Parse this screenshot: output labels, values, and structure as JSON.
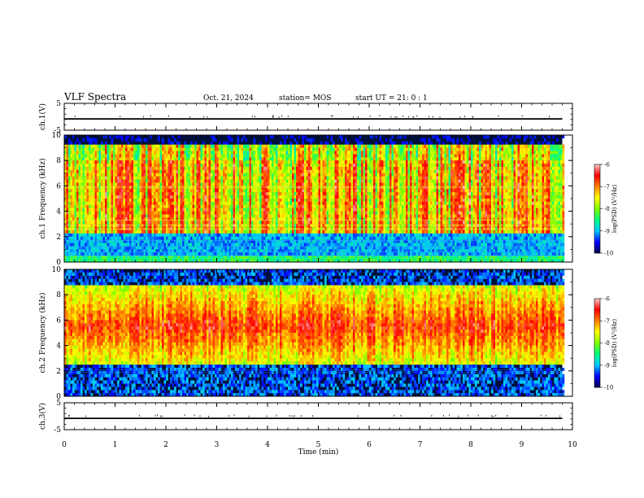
{
  "header": {
    "title": "VLF Spectra",
    "date": "Oct. 21, 2024",
    "station": "station= MOS",
    "start_ut": "start  UT =  21: 0  : 1"
  },
  "chart_data": [
    {
      "id": "ch1-voltage",
      "type": "line",
      "ylabel": "ch.1(V)",
      "ylim": [
        -5,
        5
      ],
      "yticks": [
        5,
        -5
      ],
      "xlim": [
        0,
        10
      ],
      "series": [
        {
          "x": [
            0,
            9.8
          ],
          "y": [
            -0.8,
            -0.8
          ]
        }
      ],
      "color": "#000000"
    },
    {
      "id": "ch1-spectrogram",
      "type": "heatmap",
      "ylabel": "ch.1  Frequency  (kHz)",
      "ylim": [
        0,
        10
      ],
      "yticks": [
        0,
        2,
        4,
        6,
        8,
        10
      ],
      "xlim": [
        0,
        10
      ],
      "data_extent_x": [
        0,
        9.8
      ],
      "colorbar": {
        "label": "log(PSD) (V²/Hz)",
        "range": [
          -10,
          -6
        ],
        "ticks": [
          -6,
          -7,
          -8,
          -9,
          -10
        ]
      }
    },
    {
      "id": "ch2-spectrogram",
      "type": "heatmap",
      "ylabel": "ch.2  Frequency  (kHz)",
      "ylim": [
        0,
        10
      ],
      "yticks": [
        0,
        2,
        4,
        6,
        8,
        10
      ],
      "xlim": [
        0,
        10
      ],
      "data_extent_x": [
        0,
        9.8
      ],
      "colorbar": {
        "label": "log(PSD) (V²/Hz)",
        "range": [
          -10,
          -6
        ],
        "ticks": [
          -6,
          -7,
          -8,
          -9,
          -10
        ]
      }
    },
    {
      "id": "ch3-voltage",
      "type": "line",
      "ylabel": "ch.3(V)",
      "ylim": [
        -5,
        5
      ],
      "yticks": [
        5,
        -5
      ],
      "xlim": [
        0,
        10
      ],
      "series": [
        {
          "x": [
            0,
            9.8
          ],
          "y": [
            -0.8,
            -0.8
          ]
        }
      ],
      "color": "#000000"
    }
  ],
  "x_axis": {
    "label": "Time  (min)",
    "ticks": [
      0,
      1,
      2,
      3,
      4,
      5,
      6,
      7,
      8,
      9,
      10
    ]
  },
  "colormap": [
    "#00004a",
    "#0000ff",
    "#00c8ff",
    "#00ff80",
    "#80ff00",
    "#ffff00",
    "#ff8000",
    "#ff0000",
    "#ffc8c8"
  ]
}
